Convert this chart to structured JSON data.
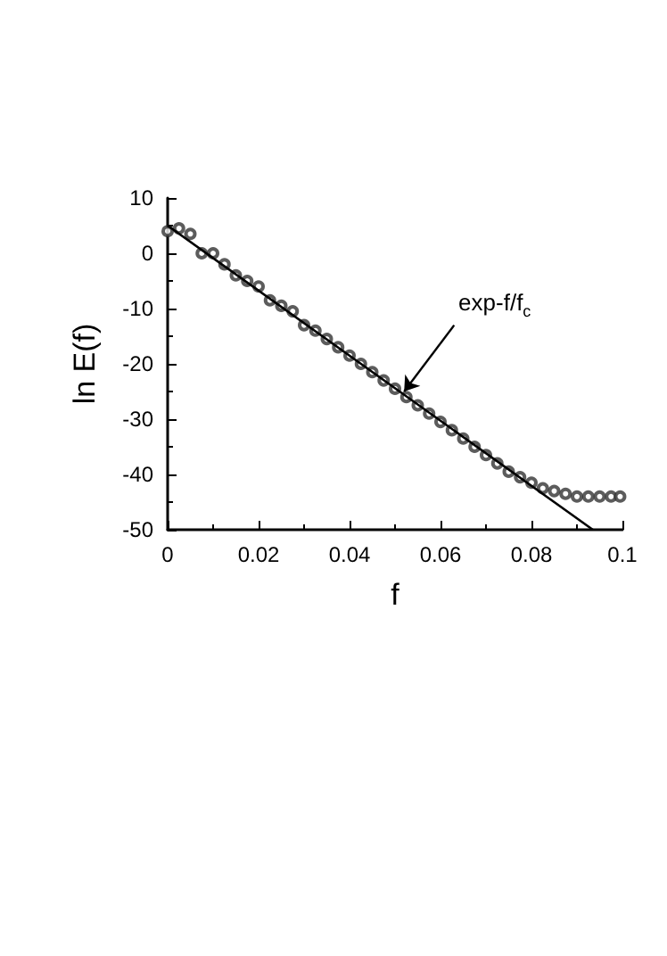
{
  "chart_data": {
    "type": "scatter",
    "xlabel": "f",
    "ylabel": "ln E(f)",
    "xlim": [
      0,
      0.1
    ],
    "xticks": [
      0,
      0.02,
      0.04,
      0.06,
      0.08,
      0.1
    ],
    "ylim": [
      -50,
      10
    ],
    "yticks": [
      -50,
      -40,
      -30,
      -20,
      -10,
      0,
      10
    ],
    "grid": false,
    "marker": "circle",
    "annotations": [
      {
        "text": "exp-f/f$_{c}$",
        "x": 0.052,
        "y": -25
      }
    ],
    "series": [
      {
        "color": "#333333",
        "x": [
          0,
          0.0025,
          0.005,
          0.0075,
          0.01,
          0.0125,
          0.015,
          0.0175,
          0.02,
          0.0225,
          0.025,
          0.0275,
          0.03,
          0.0325,
          0.035,
          0.0375,
          0.04,
          0.0425,
          0.045,
          0.0475,
          0.05,
          0.0525,
          0.055,
          0.0575,
          0.06,
          0.0625,
          0.065,
          0.0675,
          0.07,
          0.0725,
          0.075,
          0.0775,
          0.08,
          0.0825,
          0.085,
          0.0875,
          0.09,
          0.0925,
          0.095,
          0.0975,
          0.0995
        ],
        "values": [
          4,
          4.5,
          3.5,
          0,
          0,
          -2,
          -4,
          -5,
          -6,
          -8.5,
          -9.5,
          -10.5,
          -13,
          -14,
          -15.5,
          -17,
          -18.5,
          -20,
          -21.5,
          -23,
          -24.5,
          -26,
          -27.5,
          -29,
          -30.5,
          -32,
          -33.5,
          -35,
          -36.5,
          -38,
          -39.5,
          -40.5,
          -41.5,
          -42.5,
          -43,
          -43.5,
          -44,
          -44,
          -44,
          -44,
          -44
        ]
      },
      {
        "type": "line",
        "color": "#000000",
        "line_style": "solid",
        "marker": "none",
        "x": [
          0,
          0.0935
        ],
        "values": [
          5,
          -50
        ]
      }
    ]
  }
}
